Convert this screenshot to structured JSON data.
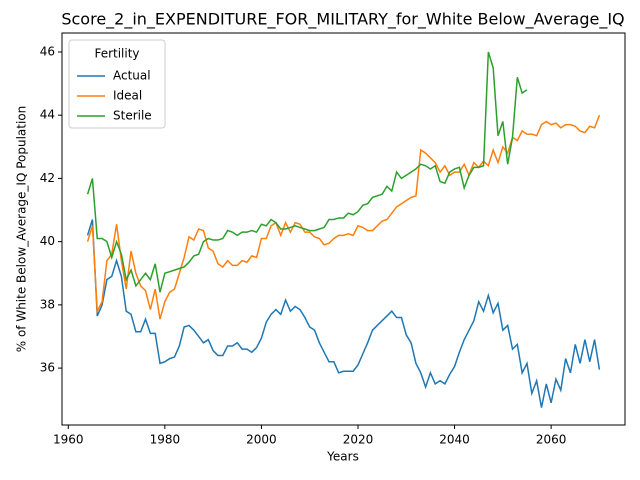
{
  "chart_data": {
    "type": "line",
    "title": "Score_2_in_EXPENDITURE_FOR_MILITARY_for_White Below_Average_IQ",
    "xlabel": "Years",
    "ylabel": "% of White Below_Average_IQ Population",
    "legend_title": "Fertility",
    "legend": "upper left",
    "grid": false,
    "x": [
      1964,
      1965,
      1966,
      1967,
      1968,
      1969,
      1970,
      1971,
      1972,
      1973,
      1974,
      1975,
      1976,
      1977,
      1978,
      1979,
      1980,
      1981,
      1982,
      1983,
      1984,
      1985,
      1986,
      1987,
      1988,
      1989,
      1990,
      1991,
      1992,
      1993,
      1994,
      1995,
      1996,
      1997,
      1998,
      1999,
      2000,
      2001,
      2002,
      2003,
      2004,
      2005,
      2006,
      2007,
      2008,
      2009,
      2010,
      2011,
      2012,
      2013,
      2014,
      2015,
      2016,
      2017,
      2018,
      2019,
      2020,
      2021,
      2022,
      2023,
      2024,
      2025,
      2026,
      2027,
      2028,
      2029,
      2030,
      2031,
      2032,
      2033,
      2034,
      2035,
      2036,
      2037,
      2038,
      2039,
      2040,
      2041,
      2042,
      2043,
      2044,
      2045,
      2046,
      2047,
      2048,
      2049,
      2050,
      2051,
      2052,
      2053,
      2054,
      2055,
      2056,
      2057,
      2058,
      2059,
      2060,
      2061,
      2062,
      2063,
      2064,
      2065,
      2066,
      2067,
      2068,
      2069,
      2070
    ],
    "series": [
      {
        "name": "Actual",
        "color": "#1f77b4",
        "values": [
          40.2,
          40.7,
          37.65,
          38.0,
          38.8,
          38.9,
          39.4,
          38.9,
          37.8,
          37.7,
          37.15,
          37.15,
          37.55,
          37.1,
          37.1,
          36.15,
          36.2,
          36.3,
          36.35,
          36.7,
          37.3,
          37.35,
          37.2,
          37.0,
          36.8,
          36.9,
          36.55,
          36.4,
          36.4,
          36.7,
          36.7,
          36.8,
          36.6,
          36.6,
          36.5,
          36.65,
          36.95,
          37.45,
          37.7,
          37.85,
          37.7,
          38.15,
          37.8,
          37.95,
          37.85,
          37.6,
          37.3,
          37.2,
          36.8,
          36.5,
          36.2,
          36.2,
          35.85,
          35.9,
          35.9,
          35.9,
          36.1,
          36.45,
          36.8,
          37.2,
          37.35,
          37.5,
          37.65,
          37.8,
          37.6,
          37.6,
          37.05,
          36.8,
          36.15,
          35.85,
          35.4,
          35.85,
          35.5,
          35.6,
          35.5,
          35.8,
          36.05,
          36.5,
          36.9,
          37.2,
          37.5,
          38.1,
          37.8,
          38.3,
          37.75,
          38.05,
          37.2,
          37.35,
          36.6,
          36.75,
          35.85,
          36.15,
          35.2,
          35.6,
          34.75,
          35.5,
          34.9,
          35.65,
          35.3,
          36.3,
          35.85,
          36.75,
          36.15,
          36.9,
          36.2,
          36.9,
          35.95
        ]
      },
      {
        "name": "Ideal",
        "color": "#ff7f0e",
        "values": [
          40.0,
          40.5,
          37.8,
          38.1,
          39.4,
          39.6,
          40.55,
          39.4,
          38.5,
          39.7,
          39.0,
          38.6,
          38.45,
          37.85,
          38.5,
          37.55,
          38.1,
          38.4,
          38.5,
          39.0,
          39.5,
          40.15,
          40.05,
          40.4,
          40.35,
          39.8,
          39.7,
          39.3,
          39.2,
          39.4,
          39.25,
          39.25,
          39.4,
          39.35,
          39.55,
          39.5,
          40.1,
          40.1,
          40.5,
          40.6,
          40.2,
          40.6,
          40.3,
          40.6,
          40.55,
          40.3,
          40.3,
          40.15,
          40.1,
          39.9,
          39.95,
          40.1,
          40.2,
          40.2,
          40.25,
          40.2,
          40.5,
          40.45,
          40.35,
          40.35,
          40.5,
          40.65,
          40.7,
          40.9,
          41.1,
          41.2,
          41.3,
          41.4,
          41.45,
          42.9,
          42.8,
          42.65,
          42.5,
          42.2,
          42.4,
          42.1,
          42.2,
          42.2,
          42.45,
          42.1,
          42.5,
          42.35,
          42.55,
          42.4,
          42.9,
          42.5,
          43.0,
          42.8,
          43.3,
          43.2,
          43.5,
          43.4,
          43.4,
          43.35,
          43.7,
          43.8,
          43.7,
          43.75,
          43.6,
          43.7,
          43.7,
          43.65,
          43.5,
          43.45,
          43.65,
          43.6,
          44.0
        ]
      },
      {
        "name": "Sterile",
        "color": "#2ca02c",
        "values": [
          41.5,
          42.0,
          40.1,
          40.1,
          40.0,
          39.5,
          40.0,
          39.6,
          38.8,
          39.1,
          38.6,
          38.8,
          39.0,
          38.8,
          39.3,
          38.4,
          39.0,
          39.05,
          39.1,
          39.15,
          39.2,
          39.35,
          39.55,
          39.6,
          40.0,
          40.1,
          40.05,
          40.05,
          40.1,
          40.35,
          40.3,
          40.2,
          40.3,
          40.3,
          40.35,
          40.3,
          40.55,
          40.5,
          40.7,
          40.6,
          40.4,
          40.4,
          40.45,
          40.5,
          40.45,
          40.4,
          40.35,
          40.35,
          40.4,
          40.45,
          40.7,
          40.7,
          40.75,
          40.75,
          40.9,
          40.85,
          40.95,
          41.15,
          41.2,
          41.4,
          41.45,
          41.5,
          41.75,
          41.6,
          42.2,
          42.0,
          42.1,
          42.2,
          42.3,
          42.45,
          42.4,
          42.3,
          42.4,
          41.9,
          41.85,
          42.2,
          42.3,
          42.35,
          41.7,
          42.1,
          42.35,
          42.35,
          42.4,
          46.0,
          45.5,
          43.35,
          43.8,
          42.45,
          43.3,
          45.2,
          44.7,
          44.8,
          null,
          null,
          null,
          null,
          null,
          null,
          null,
          null,
          null,
          null,
          null,
          null,
          null,
          null,
          null
        ]
      }
    ],
    "xlim": [
      1958.7,
      2075.3
    ],
    "xticks": [
      1960,
      1980,
      2000,
      2020,
      2040,
      2060
    ],
    "ylim": [
      34.2,
      46.6
    ],
    "yticks": [
      36,
      38,
      40,
      42,
      44,
      46
    ]
  }
}
